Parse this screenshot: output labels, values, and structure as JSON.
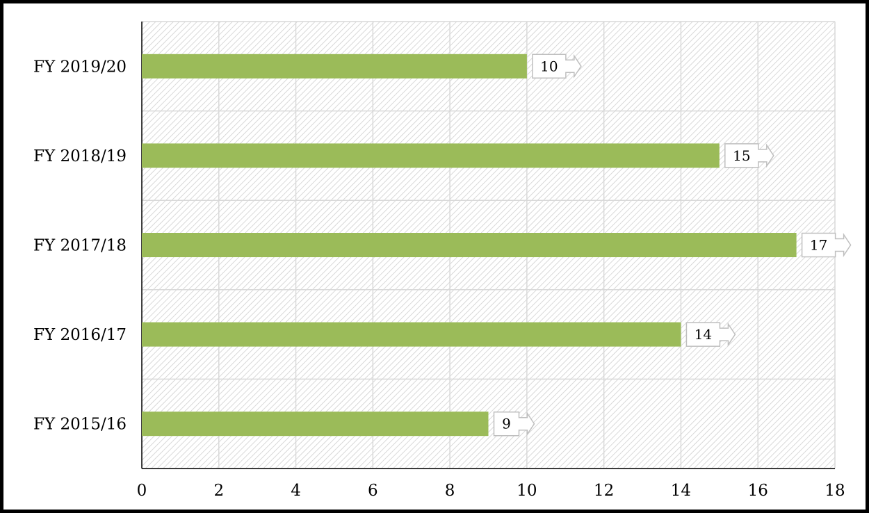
{
  "chart_data": {
    "type": "bar",
    "orientation": "horizontal",
    "categories": [
      "FY 2015/16",
      "FY 2016/17",
      "FY 2017/18",
      "FY 2018/19",
      "FY 2019/20"
    ],
    "values": [
      9,
      14,
      17,
      15,
      10
    ],
    "xlim": [
      0,
      18
    ],
    "xticks": [
      0,
      2,
      4,
      6,
      8,
      10,
      12,
      14,
      16,
      18
    ],
    "title": "",
    "xlabel": "",
    "ylabel": "",
    "grid": true,
    "legend": "none",
    "bar_color": "#9bbb59",
    "data_labels": [
      "9",
      "14",
      "17",
      "15",
      "10"
    ]
  }
}
